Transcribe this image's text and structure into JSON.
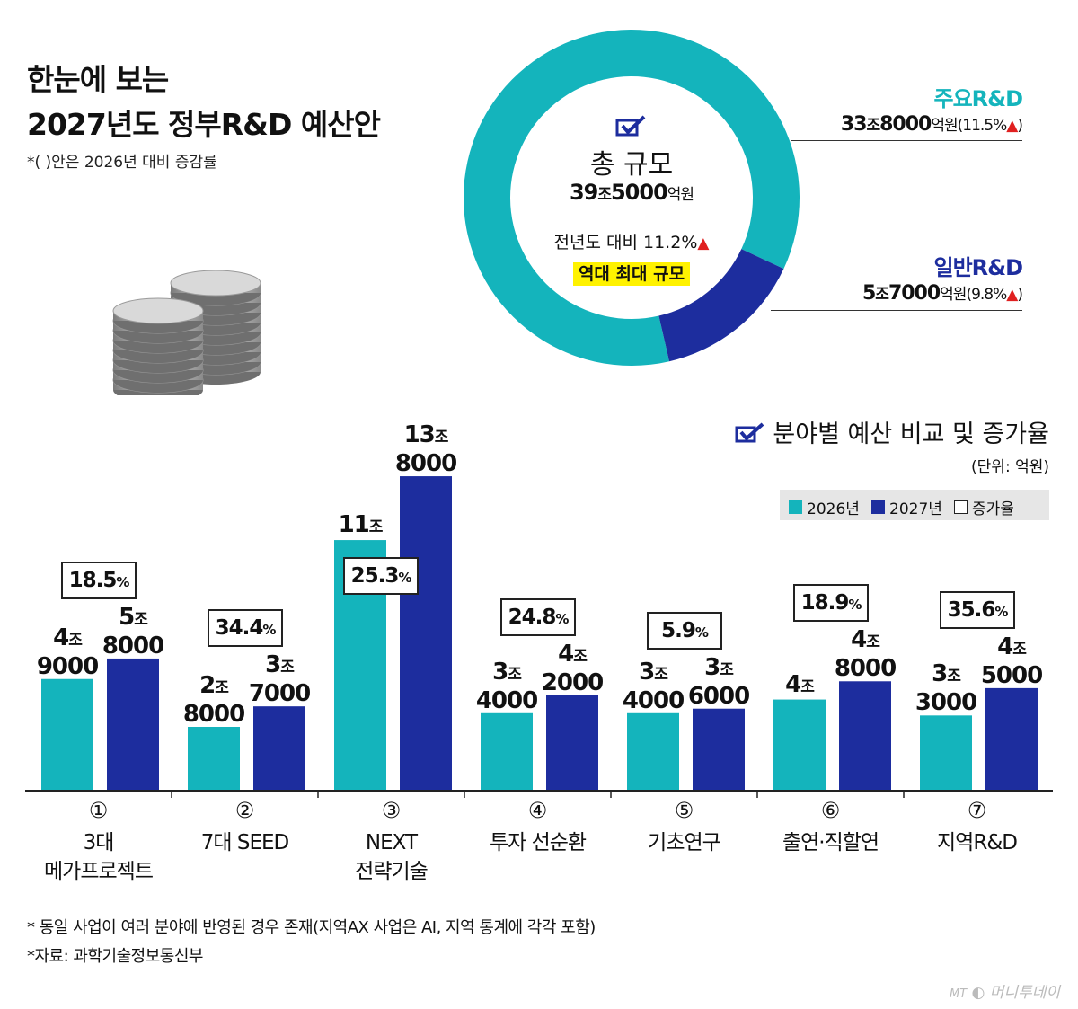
{
  "header": {
    "title_line1": "한눈에 보는",
    "title_line2": "2027년도 정부R&D 예산안",
    "note": "*(  )안은 2026년 대비 증감률"
  },
  "donut": {
    "center_title": "총 규모",
    "center_value_num1": "39",
    "center_value_unit1": "조",
    "center_value_num2": "5000",
    "center_value_unit2": "억원",
    "yoy_text": "전년도 대비 11.2%",
    "record_label": "역대 최대 규모",
    "colors": {
      "major": "#14b4bc",
      "general": "#1d2d9e",
      "up": "#e02020"
    },
    "slices": [
      {
        "label": "주요R&D",
        "value_num1": "33",
        "value_unit1": "조",
        "value_num2": "8000",
        "value_unit2": "억원",
        "change": "(11.5%",
        "share": 338000
      },
      {
        "label": "일반R&D",
        "value_num1": "5",
        "value_unit1": "조",
        "value_num2": "7000",
        "value_unit2": "억원",
        "change": "(9.8%",
        "share": 57000
      }
    ]
  },
  "section": {
    "title": "분야별 예산 비교 및 증가율",
    "unit": "(단위: 억원)",
    "legend_2026": "2026년",
    "legend_2027": "2027년",
    "legend_rate": "증가율"
  },
  "chart_data": {
    "type": "bar",
    "title": "분야별 예산 비교 및 증가율",
    "unit": "억원",
    "categories": [
      "3대 메가프로젝트",
      "7대 SEED",
      "NEXT 전략기술",
      "투자 선순환",
      "기초연구",
      "출연·직할연",
      "지역R&D"
    ],
    "series": [
      {
        "name": "2026년",
        "color": "#14b4bc",
        "values": [
          49000,
          28000,
          110000,
          34000,
          34000,
          40000,
          33000
        ]
      },
      {
        "name": "2027년",
        "color": "#1d2d9e",
        "values": [
          58000,
          37000,
          138000,
          42000,
          36000,
          48000,
          45000
        ]
      }
    ],
    "growth_rates": [
      "18.5",
      "34.4",
      "25.3",
      "24.8",
      "5.9",
      "18.9",
      "35.6"
    ],
    "ylim": [
      0,
      140000
    ],
    "legend": "top-right",
    "grid": false
  },
  "bar_labels": [
    {
      "a1": "4",
      "a2": "9000",
      "b1": "5",
      "b2": "8000"
    },
    {
      "a1": "2",
      "a2": "8000",
      "b1": "3",
      "b2": "7000"
    },
    {
      "a1": "11",
      "a2": "",
      "b1": "13",
      "b2": "8000"
    },
    {
      "a1": "3",
      "a2": "4000",
      "b1": "4",
      "b2": "2000"
    },
    {
      "a1": "3",
      "a2": "4000",
      "b1": "3",
      "b2": "6000"
    },
    {
      "a1": "4",
      "a2": "",
      "b1": "4",
      "b2": "8000"
    },
    {
      "a1": "3",
      "a2": "3000",
      "b1": "4",
      "b2": "5000"
    }
  ],
  "jo_unit": "조",
  "pct_unit": "%",
  "categories_display": [
    {
      "num": "①",
      "line1": "3대",
      "line2": "메가프로젝트"
    },
    {
      "num": "②",
      "line1": "7대 SEED",
      "line2": ""
    },
    {
      "num": "③",
      "line1": "NEXT",
      "line2": "전략기술"
    },
    {
      "num": "④",
      "line1": "투자 선순환",
      "line2": ""
    },
    {
      "num": "⑤",
      "line1": "기초연구",
      "line2": ""
    },
    {
      "num": "⑥",
      "line1": "출연·직할연",
      "line2": ""
    },
    {
      "num": "⑦",
      "line1": "지역R&D",
      "line2": ""
    }
  ],
  "footer": {
    "note1": "* 동일 사업이 여러 분야에 반영된 경우 존재(지역AX 사업은 AI, 지역 통계에 각각 포함)",
    "note2": "*자료: 과학기술정보통신부",
    "logo": "머니투데이"
  }
}
